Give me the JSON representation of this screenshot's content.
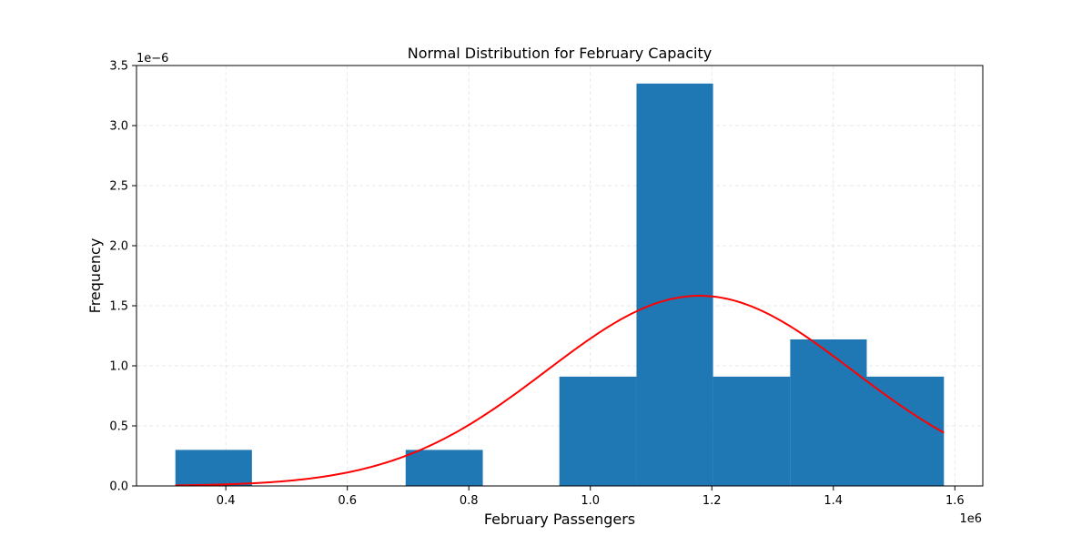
{
  "chart_data": {
    "type": "bar",
    "title": "Normal Distribution for February Capacity",
    "xlabel": "February Passengers",
    "ylabel": "Frequency",
    "x_offset_label": "1e6",
    "y_offset_label": "1e−6",
    "xlim": [
      0.253,
      1.646
    ],
    "ylim": [
      0,
      3.5
    ],
    "grid": true,
    "x_ticks": [
      0.4,
      0.6,
      0.8,
      1.0,
      1.2,
      1.4,
      1.6
    ],
    "x_tick_labels": [
      "0.4",
      "0.6",
      "0.8",
      "1.0",
      "1.2",
      "1.4",
      "1.6"
    ],
    "y_ticks": [
      0.0,
      0.5,
      1.0,
      1.5,
      2.0,
      2.5,
      3.0,
      3.5
    ],
    "y_tick_labels": [
      "0.0",
      "0.5",
      "1.0",
      "1.5",
      "2.0",
      "2.5",
      "3.0",
      "3.5"
    ],
    "bar_color": "#1f77b4",
    "curve_color": "#ff0000",
    "bins": [
      {
        "x0": 0.317,
        "x1": 0.443,
        "value": 0.3
      },
      {
        "x0": 0.443,
        "x1": 0.57,
        "value": 0.0
      },
      {
        "x0": 0.57,
        "x1": 0.696,
        "value": 0.0
      },
      {
        "x0": 0.696,
        "x1": 0.823,
        "value": 0.3
      },
      {
        "x0": 0.823,
        "x1": 0.949,
        "value": 0.0
      },
      {
        "x0": 0.949,
        "x1": 1.076,
        "value": 0.91
      },
      {
        "x0": 1.076,
        "x1": 1.202,
        "value": 3.35
      },
      {
        "x0": 1.202,
        "x1": 1.329,
        "value": 0.91
      },
      {
        "x0": 1.329,
        "x1": 1.455,
        "value": 1.22
      },
      {
        "x0": 1.455,
        "x1": 1.582,
        "value": 0.91
      }
    ],
    "normal_curve": {
      "mean": 1.18,
      "std": 0.252,
      "x_range": [
        0.317,
        1.582
      ]
    }
  }
}
